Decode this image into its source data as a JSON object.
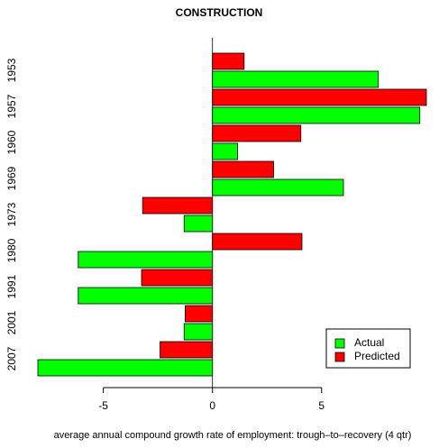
{
  "chart_data": {
    "type": "bar",
    "orientation": "horizontal",
    "title": "CONSTRUCTION",
    "x_label": "average annual compound growth rate of employment: trough–to–recovery (4 qtr)",
    "categories": [
      "1953",
      "1957",
      "1960",
      "1969",
      "1973",
      "1980",
      "1991",
      "2001",
      "2007"
    ],
    "series": [
      {
        "name": "Actual",
        "color": "#00ff00",
        "values": [
          7.6,
          9.5,
          1.15,
          6.0,
          -1.3,
          -6.15,
          -6.15,
          -1.3,
          -8.0
        ]
      },
      {
        "name": "Predicted",
        "color": "#ff0000",
        "values": [
          1.45,
          9.8,
          4.05,
          2.8,
          -3.2,
          4.1,
          -3.25,
          -1.25,
          -2.4
        ]
      }
    ],
    "xlim": [
      -8.0,
      9.8
    ],
    "xticks": [
      -5,
      0,
      5
    ],
    "legend": "bottom-right"
  }
}
